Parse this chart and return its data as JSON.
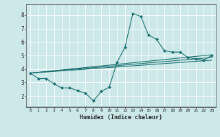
{
  "title": "",
  "xlabel": "Humidex (Indice chaleur)",
  "bg_color": "#cce8e8",
  "line_color": "#1a7070",
  "grid_color": "#ffffff",
  "xlim": [
    -0.5,
    23.5
  ],
  "ylim": [
    1.2,
    8.8
  ],
  "yticks": [
    2,
    3,
    4,
    5,
    6,
    7,
    8
  ],
  "xticks": [
    0,
    1,
    2,
    3,
    4,
    5,
    6,
    7,
    8,
    9,
    10,
    11,
    12,
    13,
    14,
    15,
    16,
    17,
    18,
    19,
    20,
    21,
    22,
    23
  ],
  "main_line": [
    [
      0,
      3.7
    ],
    [
      1,
      3.3
    ],
    [
      2,
      3.3
    ],
    [
      3,
      2.9
    ],
    [
      4,
      2.6
    ],
    [
      5,
      2.6
    ],
    [
      6,
      2.4
    ],
    [
      7,
      2.2
    ],
    [
      8,
      1.65
    ],
    [
      9,
      2.35
    ],
    [
      10,
      2.65
    ],
    [
      11,
      4.5
    ],
    [
      12,
      5.6
    ],
    [
      13,
      8.1
    ],
    [
      14,
      7.9
    ],
    [
      15,
      6.5
    ],
    [
      16,
      6.2
    ],
    [
      17,
      5.35
    ],
    [
      18,
      5.25
    ],
    [
      19,
      5.25
    ],
    [
      20,
      4.85
    ],
    [
      21,
      4.75
    ],
    [
      22,
      4.65
    ],
    [
      23,
      5.0
    ]
  ],
  "straight_lines": [
    [
      [
        0,
        3.7
      ],
      [
        23,
        4.65
      ]
    ],
    [
      [
        0,
        3.7
      ],
      [
        23,
        4.85
      ]
    ],
    [
      [
        0,
        3.7
      ],
      [
        23,
        5.05
      ]
    ]
  ]
}
